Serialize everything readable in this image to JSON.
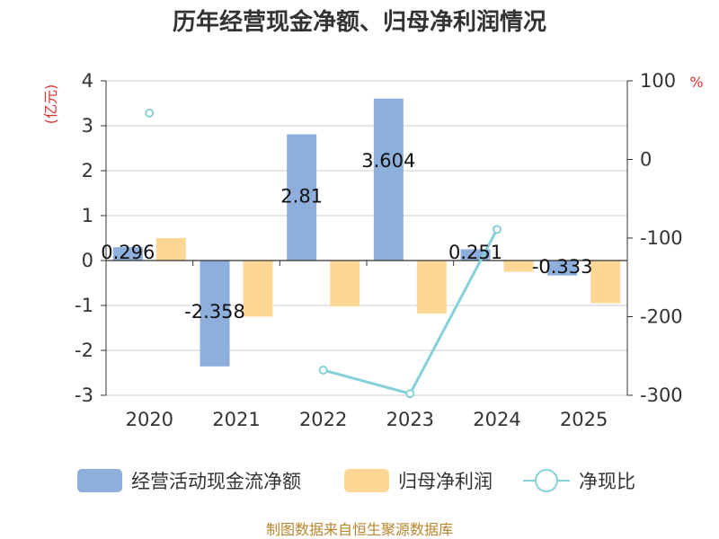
{
  "chart_data": {
    "type": "bar",
    "title": "历年经营现金净额、归母净利润情况",
    "categories": [
      "2020",
      "2021",
      "2022",
      "2023",
      "2024",
      "2025"
    ],
    "left_axis": {
      "unit": "(亿元)",
      "ylim": [
        -3,
        4
      ],
      "ticks": [
        -3,
        -2,
        -1,
        0,
        1,
        2,
        3,
        4
      ]
    },
    "right_axis": {
      "unit": "%",
      "ylim": [
        -300,
        100
      ],
      "ticks": [
        -300,
        -200,
        -100,
        0,
        100
      ]
    },
    "series": [
      {
        "name": "经营活动现金流净额",
        "type": "bar",
        "axis": "left",
        "color": "#8eaedc",
        "values": [
          0.296,
          -2.358,
          2.81,
          3.604,
          0.251,
          -0.333
        ],
        "labels": [
          "0.296",
          "-2.358",
          "2.81",
          "3.604",
          "0.251",
          "-0.333"
        ]
      },
      {
        "name": "归母净利润",
        "type": "bar",
        "axis": "left",
        "color": "#fed797",
        "values": [
          0.5,
          -1.25,
          -1.02,
          -1.18,
          -0.25,
          -0.95
        ]
      },
      {
        "name": "净现比",
        "type": "line",
        "axis": "right",
        "color": "#86d1d9",
        "values": [
          59,
          null,
          -268,
          -298,
          -89,
          null
        ]
      }
    ],
    "grid": true,
    "legend": "bottom",
    "source": "制图数据来自恒生聚源数据库",
    "colors": {
      "title": "#333333",
      "unit": "#e03131",
      "source": "#b8862d",
      "axis": "#333333",
      "grid": "#cccccc"
    }
  }
}
